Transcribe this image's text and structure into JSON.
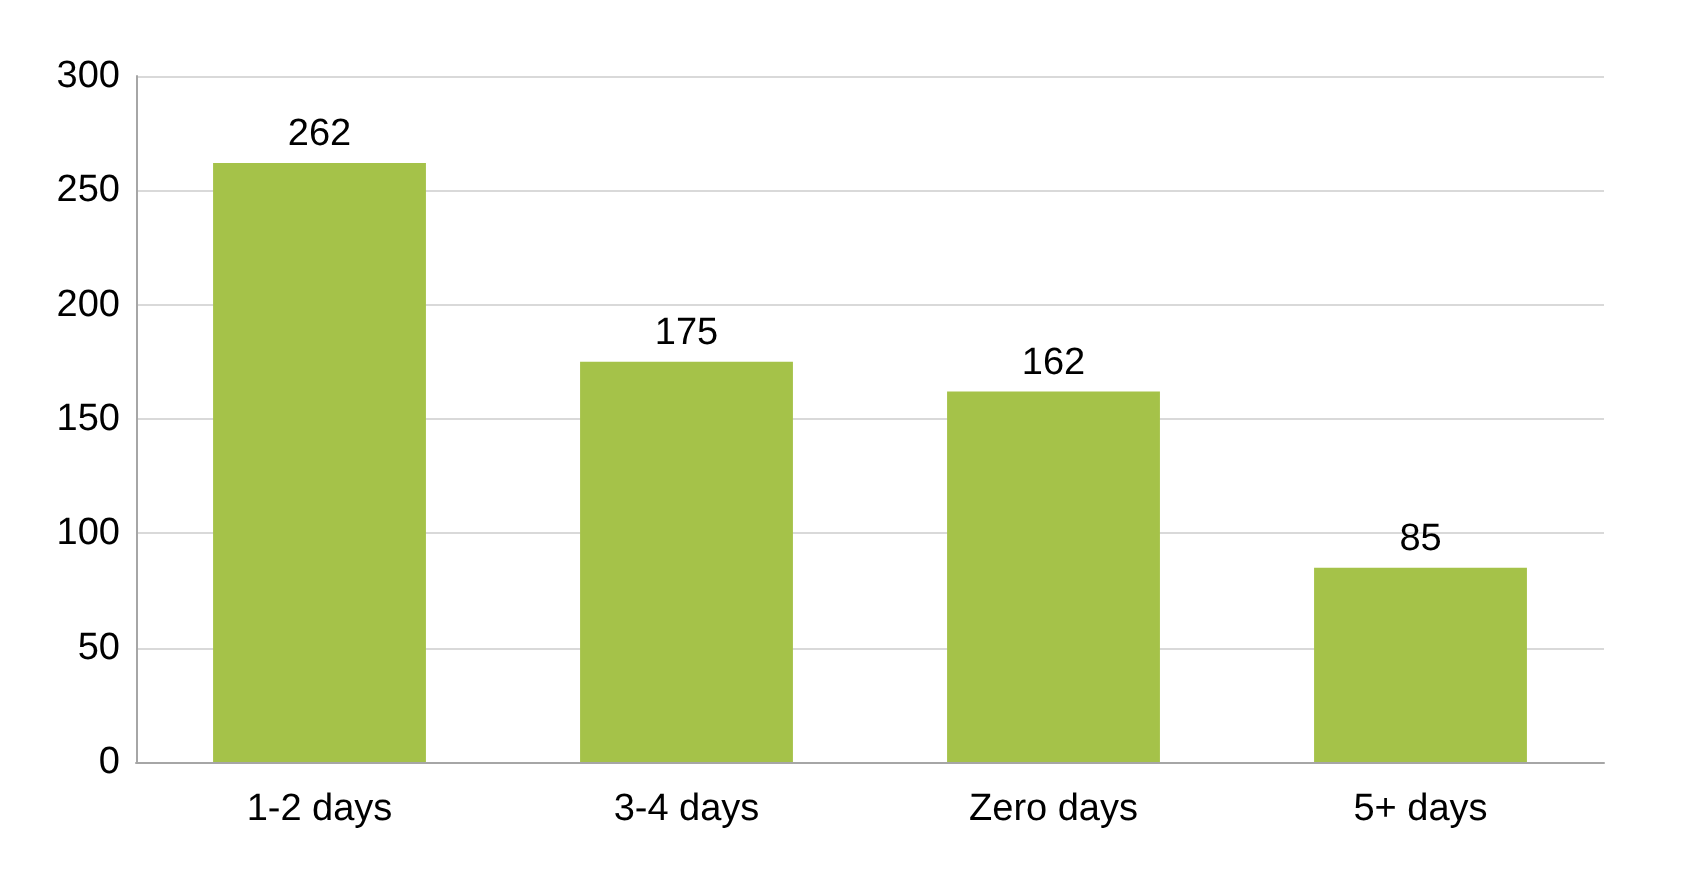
{
  "chart_data": {
    "type": "bar",
    "categories": [
      "1-2 days",
      "3-4 days",
      "Zero days",
      "5+ days"
    ],
    "values": [
      262,
      175,
      162,
      85
    ],
    "color": "#a5c249",
    "ylim": [
      0,
      300
    ],
    "yticks": [
      0,
      50,
      100,
      150,
      200,
      250,
      300
    ],
    "grid": true,
    "data_labels": true
  }
}
